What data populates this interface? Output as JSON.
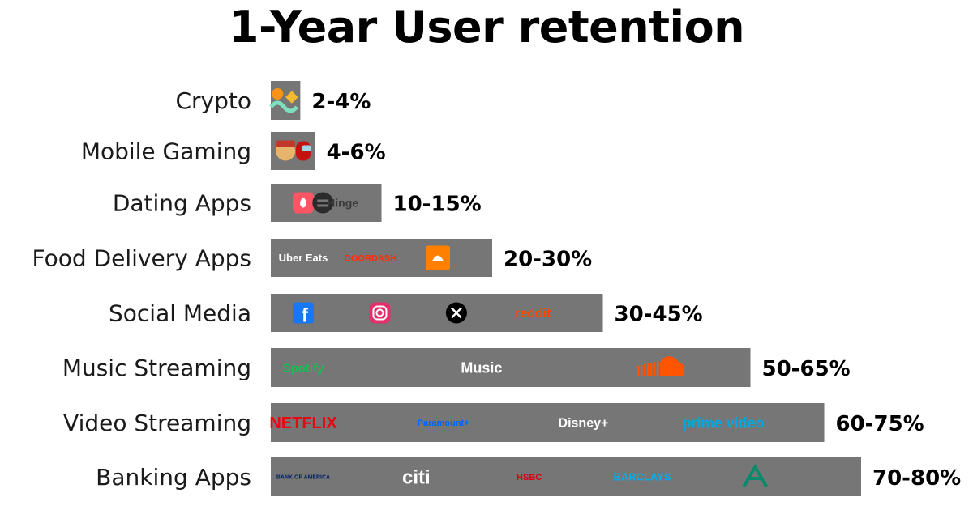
{
  "chart_data": {
    "type": "bar",
    "orientation": "horizontal",
    "title": "1-Year User retention",
    "xlabel": "",
    "ylabel": "",
    "xlim": [
      0,
      100
    ],
    "categories": [
      "Crypto",
      "Mobile Gaming",
      "Dating Apps",
      "Food Delivery Apps",
      "Social Media",
      "Music Streaming",
      "Video Streaming",
      "Banking Apps"
    ],
    "values": [
      4,
      6,
      15,
      30,
      45,
      65,
      75,
      80
    ],
    "range_low": [
      2,
      4,
      10,
      20,
      30,
      50,
      60,
      70
    ],
    "data_labels": [
      "2-4%",
      "4-6%",
      "10-15%",
      "20-30%",
      "30-45%",
      "50-65%",
      "60-75%",
      "70-80%"
    ],
    "bar_color": "#767676",
    "logos": [
      [
        {
          "kind": "bitcoin-binance"
        }
      ],
      [
        {
          "kind": "among-us"
        },
        {
          "kind": "subway-surfers"
        }
      ],
      [
        {
          "kind": "tinder"
        },
        {
          "kind": "bumble"
        },
        {
          "kind": "text",
          "text": "Hinge"
        }
      ],
      [
        {
          "kind": "text",
          "text": "Uber Eats"
        },
        {
          "kind": "text",
          "text": "DOORDASH"
        },
        {
          "kind": "just-eat"
        }
      ],
      [
        {
          "kind": "facebook"
        },
        {
          "kind": "instagram"
        },
        {
          "kind": "x"
        },
        {
          "kind": "text",
          "text": "reddit"
        }
      ],
      [
        {
          "kind": "text",
          "text": "Spotify"
        },
        {
          "kind": "text",
          "text": "Music"
        },
        {
          "kind": "soundcloud"
        }
      ],
      [
        {
          "kind": "text",
          "text": "NETFLIX"
        },
        {
          "kind": "text",
          "text": "Paramount+"
        },
        {
          "kind": "text",
          "text": "Disney+"
        },
        {
          "kind": "text",
          "text": "prime video"
        }
      ],
      [
        {
          "kind": "text",
          "text": "BANK OF AMERICA"
        },
        {
          "kind": "text",
          "text": "citi"
        },
        {
          "kind": "text",
          "text": "HSBC"
        },
        {
          "kind": "text",
          "text": "BARCLAYS"
        },
        {
          "kind": "credit-agricole"
        }
      ]
    ]
  }
}
